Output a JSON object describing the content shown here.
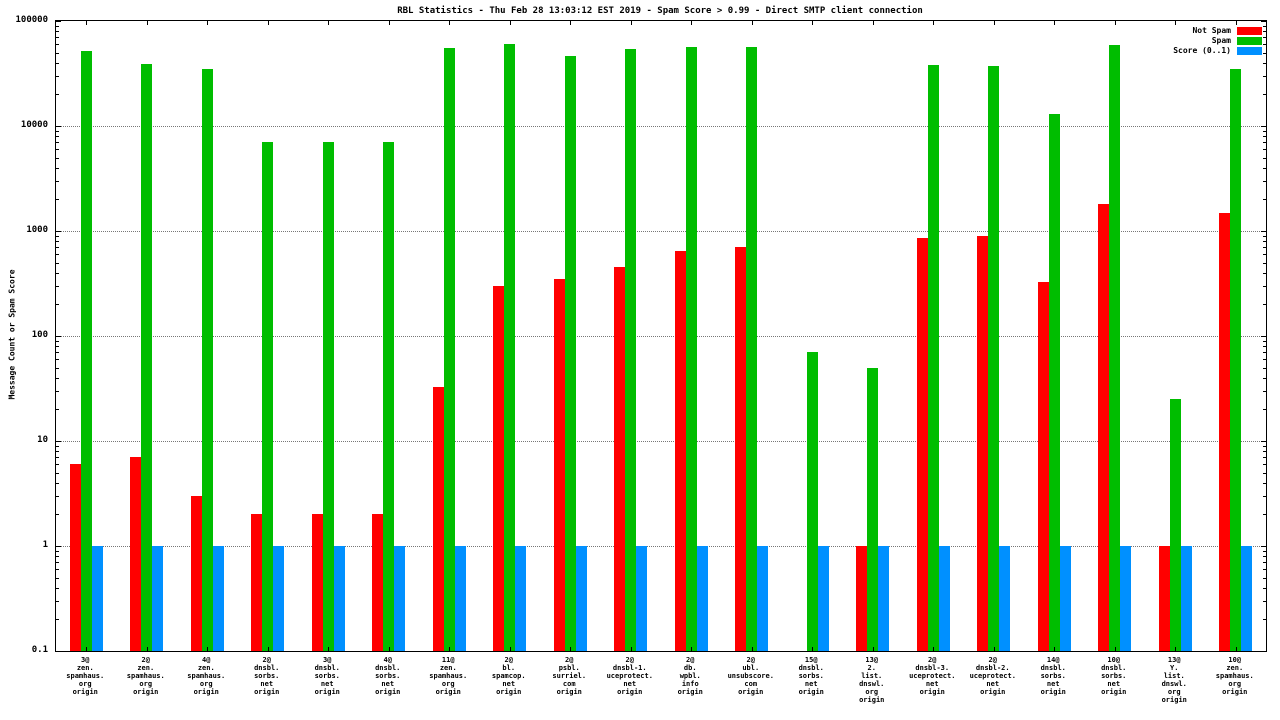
{
  "chart_data": {
    "type": "bar",
    "scale": "log",
    "title": "RBL Statistics - Thu Feb 28 13:03:12 EST 2019 - Spam Score > 0.99 - Direct SMTP client connection",
    "ylabel": "Message Count or Spam Score",
    "xlabel": "",
    "ylim": [
      0.1,
      100000
    ],
    "yticks": [
      100000,
      10000,
      1000,
      100,
      10,
      1,
      0.1
    ],
    "grid": true,
    "legend_position": "top-right",
    "categories": [
      [
        "3@",
        "zen.",
        "spamhaus.",
        "org",
        "origin"
      ],
      [
        "2@",
        "zen.",
        "spamhaus.",
        "org",
        "origin"
      ],
      [
        "4@",
        "zen.",
        "spamhaus.",
        "org",
        "origin"
      ],
      [
        "2@",
        "dnsbl.",
        "sorbs.",
        "net",
        "origin"
      ],
      [
        "3@",
        "dnsbl.",
        "sorbs.",
        "net",
        "origin"
      ],
      [
        "4@",
        "dnsbl.",
        "sorbs.",
        "net",
        "origin"
      ],
      [
        "11@",
        "zen.",
        "spamhaus.",
        "org",
        "origin"
      ],
      [
        "2@",
        "bl.",
        "spamcop.",
        "net",
        "origin"
      ],
      [
        "2@",
        "psbl.",
        "surriel.",
        "com",
        "origin"
      ],
      [
        "2@",
        "dnsbl-1.",
        "uceprotect.",
        "net",
        "origin"
      ],
      [
        "2@",
        "db.",
        "wpbl.",
        "info",
        "origin"
      ],
      [
        "2@",
        "ubl.",
        "unsubscore.",
        "com",
        "origin"
      ],
      [
        "15@",
        "dnsbl.",
        "sorbs.",
        "net",
        "origin"
      ],
      [
        "13@",
        "2.",
        "list.",
        "dnswl.",
        "org",
        "origin"
      ],
      [
        "2@",
        "dnsbl-3.",
        "uceprotect.",
        "net",
        "origin"
      ],
      [
        "2@",
        "dnsbl-2.",
        "uceprotect.",
        "net",
        "origin"
      ],
      [
        "14@",
        "dnsbl.",
        "sorbs.",
        "net",
        "origin"
      ],
      [
        "10@",
        "dnsbl.",
        "sorbs.",
        "net",
        "origin"
      ],
      [
        "13@",
        "Y.",
        "list.",
        "dnswl.",
        "org",
        "origin"
      ],
      [
        "10@",
        "zen.",
        "spamhaus.",
        "org",
        "origin"
      ]
    ],
    "series": [
      {
        "name": "Not Spam",
        "color": "#ff0000",
        "values": [
          6,
          7,
          3,
          2,
          2,
          2,
          33,
          300,
          350,
          450,
          650,
          700,
          null,
          1,
          850,
          900,
          330,
          1800,
          1,
          1500
        ]
      },
      {
        "name": "Spam",
        "color": "#00bd00",
        "values": [
          52000,
          39000,
          35000,
          7000,
          7000,
          7000,
          55000,
          60000,
          46000,
          54000,
          57000,
          56000,
          70,
          50,
          38000,
          37000,
          13000,
          59000,
          25,
          35000
        ]
      },
      {
        "name": "Score (0..1)",
        "color": "#0090ff",
        "values": [
          0.99,
          0.99,
          0.99,
          0.99,
          0.99,
          0.99,
          0.99,
          0.99,
          0.99,
          0.99,
          0.99,
          0.99,
          0.99,
          0.99,
          0.99,
          0.99,
          0.99,
          0.99,
          0.99,
          0.99
        ]
      }
    ]
  }
}
